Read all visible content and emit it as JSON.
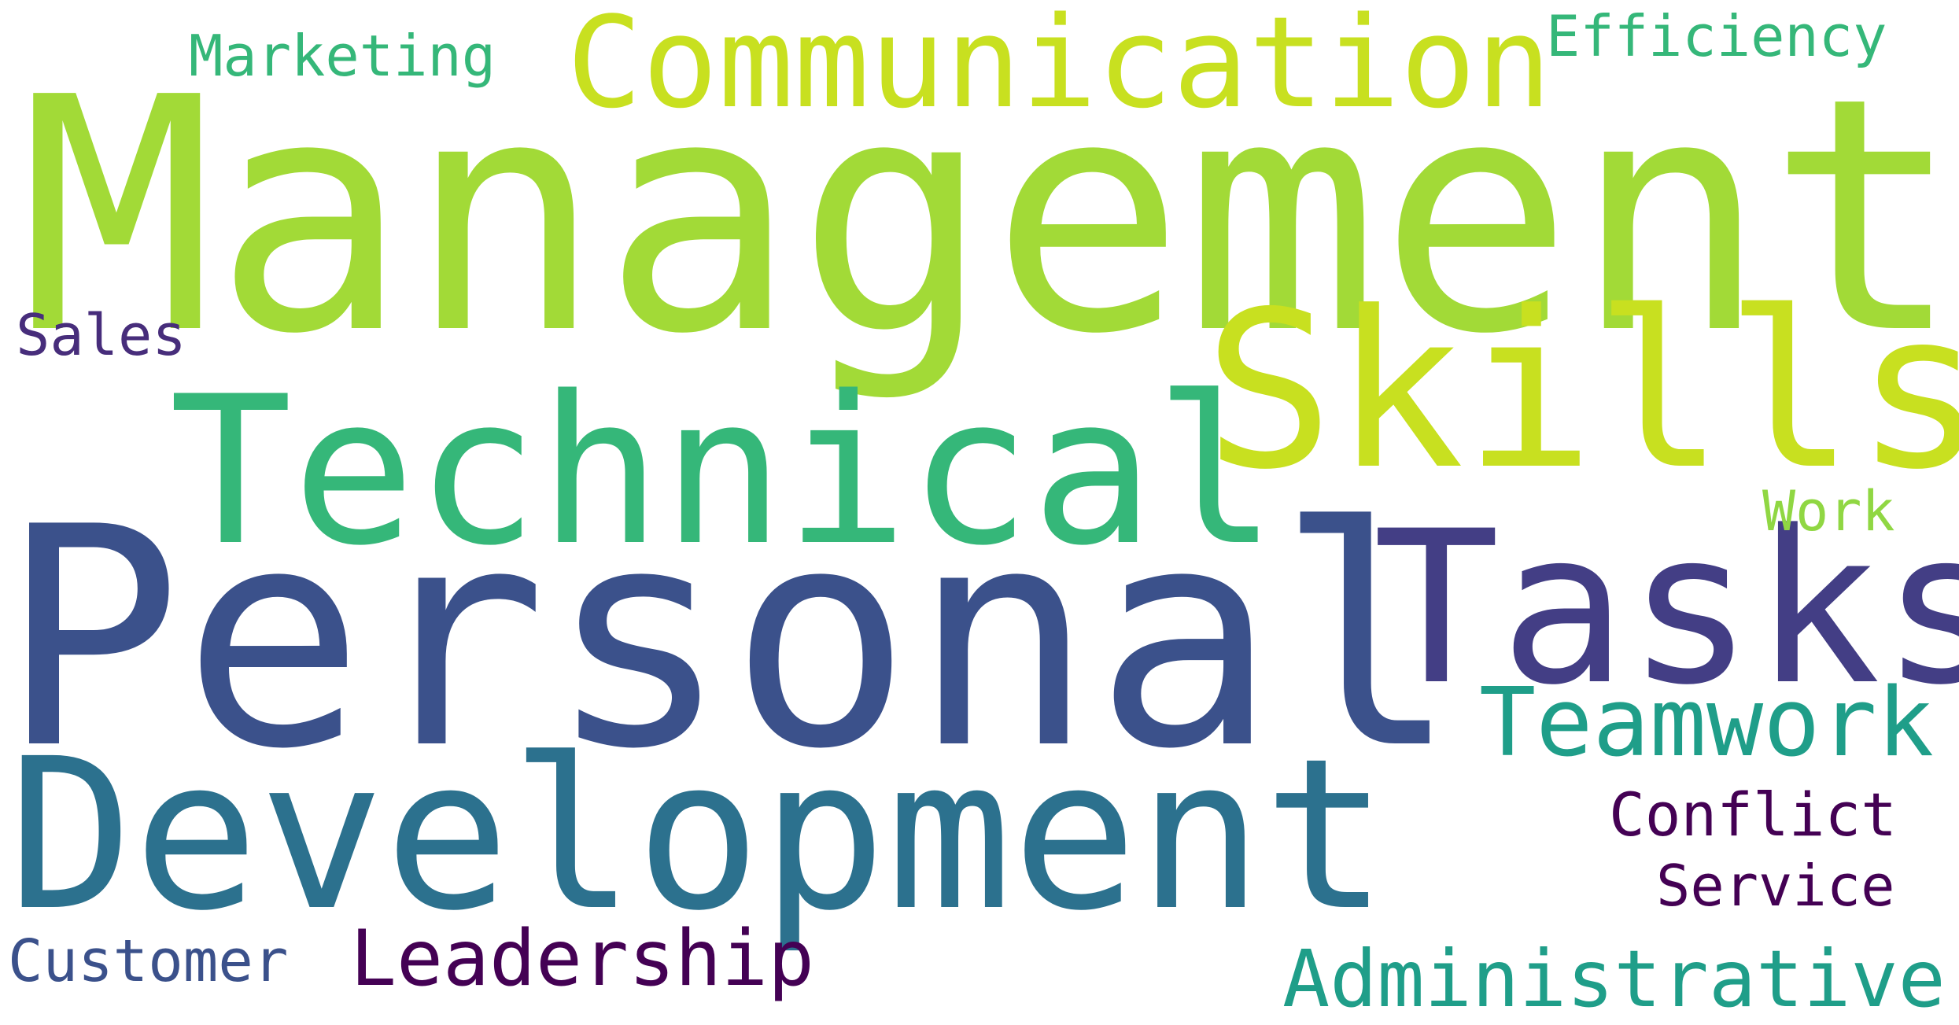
{
  "words": [
    {
      "text": "Management",
      "color": "#a2da37"
    },
    {
      "text": "Communication",
      "color": "#c8e020"
    },
    {
      "text": "Skills",
      "color": "#c8e020"
    },
    {
      "text": "Technical",
      "color": "#35b779"
    },
    {
      "text": "Personal",
      "color": "#3b518b"
    },
    {
      "text": "Tasks",
      "color": "#433e85"
    },
    {
      "text": "Development",
      "color": "#2c718e"
    },
    {
      "text": "Teamwork",
      "color": "#1f9e89"
    },
    {
      "text": "Marketing",
      "color": "#35b779"
    },
    {
      "text": "Efficiency",
      "color": "#35b779"
    },
    {
      "text": "Sales",
      "color": "#472d7b"
    },
    {
      "text": "Work",
      "color": "#90d743"
    },
    {
      "text": "Conflict",
      "color": "#440154"
    },
    {
      "text": "Service",
      "color": "#440154"
    },
    {
      "text": "Customer",
      "color": "#3b518b"
    },
    {
      "text": "Leadership",
      "color": "#440154"
    },
    {
      "text": "Administrative",
      "color": "#1f9e89"
    }
  ],
  "background_color": "#ffffff"
}
